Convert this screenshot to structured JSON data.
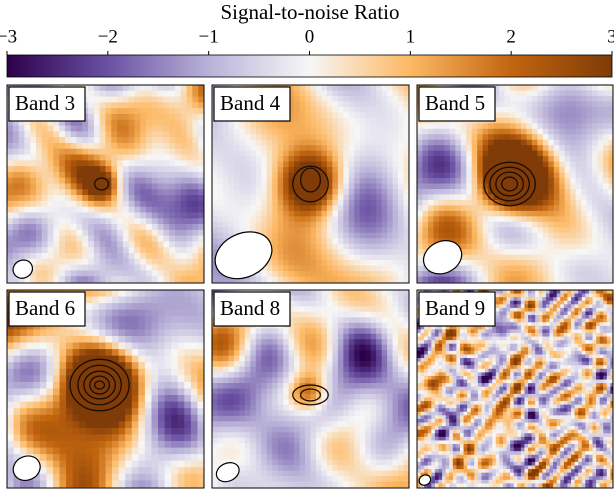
{
  "chart_data": {
    "type": "image-grid",
    "title": "Signal-to-noise Ratio",
    "xlim": [
      -3,
      3
    ],
    "xticks": [
      {
        "value": -3,
        "label": "−3"
      },
      {
        "value": -2,
        "label": "−2"
      },
      {
        "value": -1,
        "label": "−1"
      },
      0,
      1,
      2,
      3
    ],
    "colors": [
      "#2d004b",
      "#6a51a3",
      "#b9b2d8",
      "#f7f7f7",
      "#fdb863",
      "#c2650f",
      "#7f3b08"
    ],
    "panels": [
      "Band 3",
      "Band 4",
      "Band 5",
      "Band 6",
      "Band 8",
      "Band 9"
    ]
  }
}
